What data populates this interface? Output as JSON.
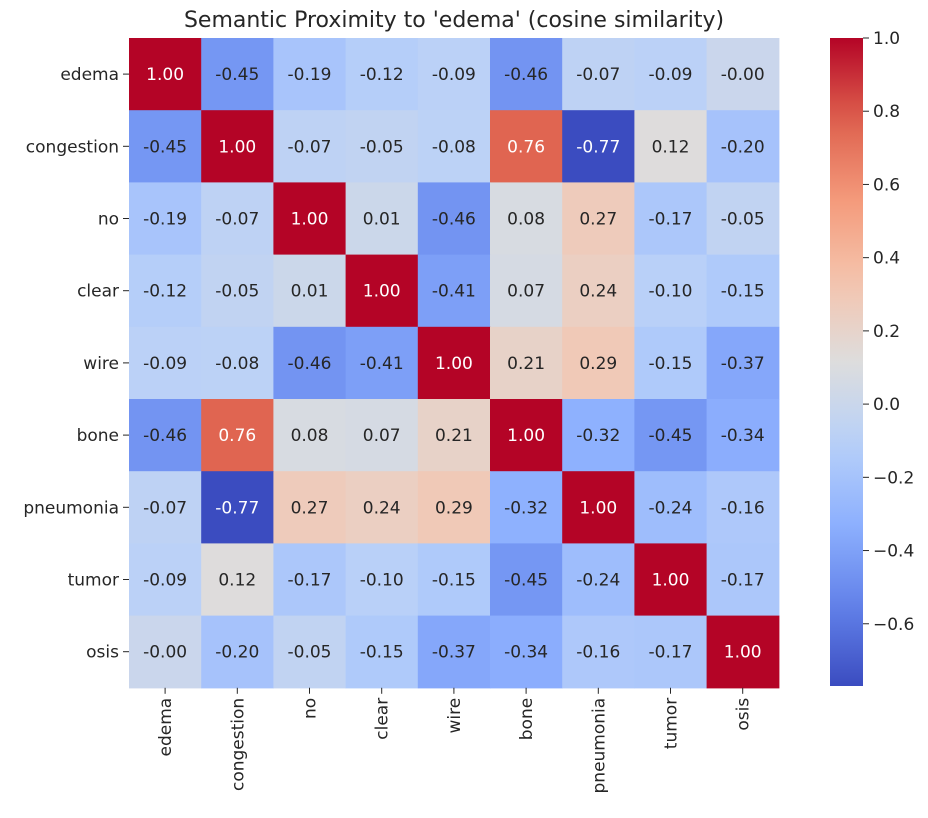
{
  "chart_data": {
    "type": "heatmap",
    "title": "Semantic Proximity to 'edema' (cosine similarity)",
    "xlabel": "",
    "ylabel": "",
    "row_labels": [
      "edema",
      "congestion",
      "no",
      "clear",
      "wire",
      "bone",
      "pneumonia",
      "tumor",
      "osis"
    ],
    "col_labels": [
      "edema",
      "congestion",
      "no",
      "clear",
      "wire",
      "bone",
      "pneumonia",
      "tumor",
      "osis"
    ],
    "values": [
      [
        1.0,
        -0.45,
        -0.19,
        -0.12,
        -0.09,
        -0.46,
        -0.07,
        -0.09,
        -0.0
      ],
      [
        -0.45,
        1.0,
        -0.07,
        -0.05,
        -0.08,
        0.76,
        -0.77,
        0.12,
        -0.2
      ],
      [
        -0.19,
        -0.07,
        1.0,
        0.01,
        -0.46,
        0.08,
        0.27,
        -0.17,
        -0.05
      ],
      [
        -0.12,
        -0.05,
        0.01,
        1.0,
        -0.41,
        0.07,
        0.24,
        -0.1,
        -0.15
      ],
      [
        -0.09,
        -0.08,
        -0.46,
        -0.41,
        1.0,
        0.21,
        0.29,
        -0.15,
        -0.37
      ],
      [
        -0.46,
        0.76,
        0.08,
        0.07,
        0.21,
        1.0,
        -0.32,
        -0.45,
        -0.34
      ],
      [
        -0.07,
        -0.77,
        0.27,
        0.24,
        0.29,
        -0.32,
        1.0,
        -0.24,
        -0.16
      ],
      [
        -0.09,
        0.12,
        -0.17,
        -0.1,
        -0.15,
        -0.45,
        -0.24,
        1.0,
        -0.17
      ],
      [
        -0.0,
        -0.2,
        -0.05,
        -0.15,
        -0.37,
        -0.34,
        -0.16,
        -0.17,
        1.0
      ]
    ],
    "annotation_format": "0.00",
    "colormap": "coolwarm",
    "vmin": -0.77,
    "vmax": 1.0,
    "colorbar": {
      "range": [
        -0.77,
        1.0
      ],
      "ticks": [
        1.0,
        0.8,
        0.6,
        0.4,
        0.2,
        0.0,
        -0.2,
        -0.4,
        -0.6
      ],
      "tick_labels": [
        "1.0",
        "0.8",
        "0.6",
        "0.4",
        "0.2",
        "0.0",
        "−0.2",
        "−0.4",
        "−0.6"
      ]
    }
  }
}
